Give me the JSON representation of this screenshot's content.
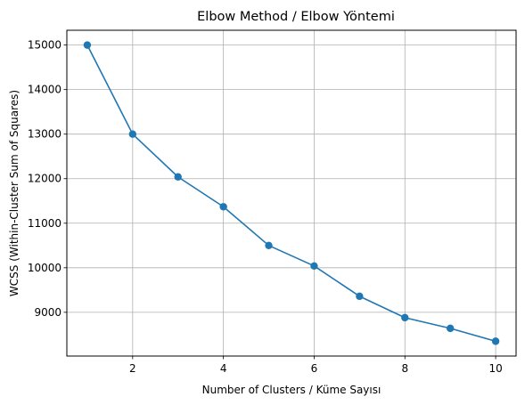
{
  "chart_data": {
    "type": "line",
    "title": "Elbow Method / Elbow Yöntemi",
    "xlabel": "Number of Clusters / Küme Sayısı",
    "ylabel": "WCSS (Within-Cluster Sum of Squares)",
    "x": [
      1,
      2,
      3,
      4,
      5,
      6,
      7,
      8,
      9,
      10
    ],
    "series": [
      {
        "values": [
          15000,
          13000,
          12040,
          11370,
          10500,
          10040,
          9360,
          8880,
          8640,
          8350
        ],
        "color": "#1f77b4",
        "marker": "circle"
      }
    ],
    "xlim": [
      0.55,
      10.45
    ],
    "ylim": [
      8018,
      15332
    ],
    "xticks": [
      2,
      4,
      6,
      8,
      10
    ],
    "yticks": [
      9000,
      10000,
      11000,
      12000,
      13000,
      14000,
      15000
    ],
    "grid": true,
    "legend": "none"
  }
}
